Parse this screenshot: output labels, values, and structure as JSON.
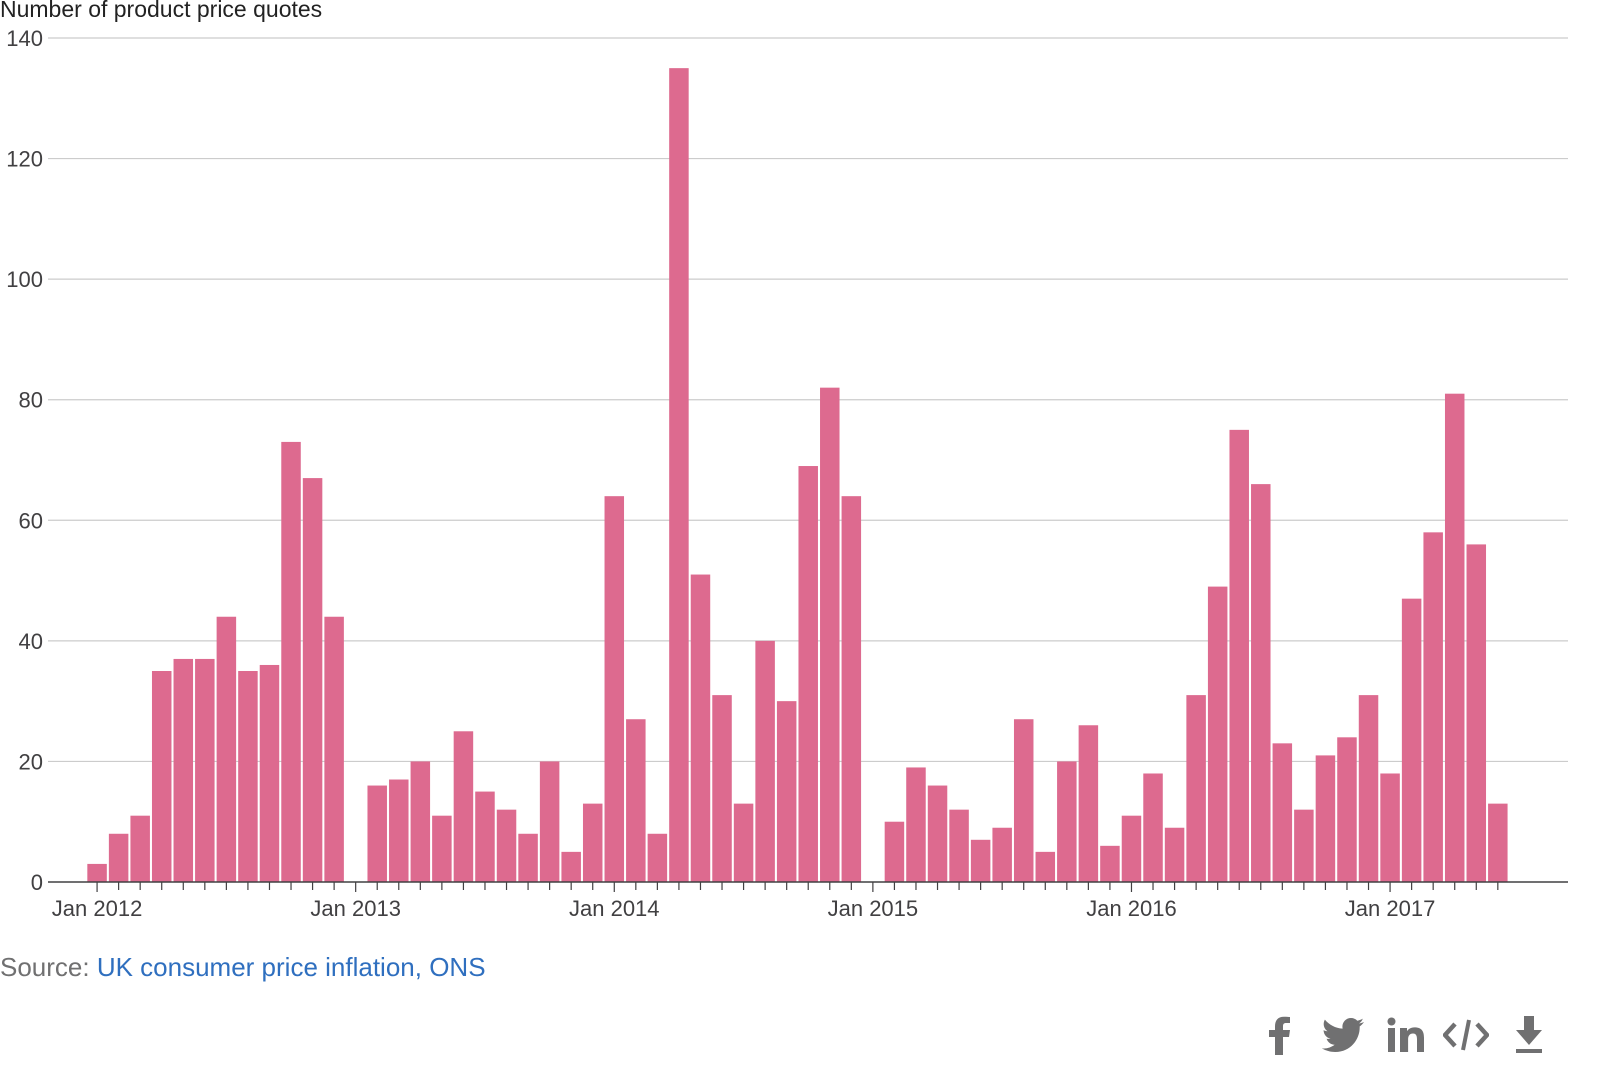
{
  "chart_data": {
    "type": "bar",
    "ylabel": "Number of product price quotes",
    "xlabel": "",
    "ylim": [
      0,
      140
    ],
    "yticks": [
      0,
      20,
      40,
      60,
      80,
      100,
      120,
      140
    ],
    "xtick_labels": [
      "Jan 2012",
      "Jan 2013",
      "Jan 2014",
      "Jan 2015",
      "Jan 2016",
      "Jan 2017"
    ],
    "grid": true,
    "bar_color": "#dd6a8f",
    "categories": [
      "Jan 2012",
      "Feb 2012",
      "Mar 2012",
      "Apr 2012",
      "May 2012",
      "Jun 2012",
      "Jul 2012",
      "Aug 2012",
      "Sep 2012",
      "Oct 2012",
      "Nov 2012",
      "Dec 2012",
      "Jan 2013",
      "Feb 2013",
      "Mar 2013",
      "Apr 2013",
      "May 2013",
      "Jun 2013",
      "Jul 2013",
      "Aug 2013",
      "Sep 2013",
      "Oct 2013",
      "Nov 2013",
      "Dec 2013",
      "Jan 2014",
      "Feb 2014",
      "Mar 2014",
      "Apr 2014",
      "May 2014",
      "Jun 2014",
      "Jul 2014",
      "Aug 2014",
      "Sep 2014",
      "Oct 2014",
      "Nov 2014",
      "Dec 2014",
      "Jan 2015",
      "Feb 2015",
      "Mar 2015",
      "Apr 2015",
      "May 2015",
      "Jun 2015",
      "Jul 2015",
      "Aug 2015",
      "Sep 2015",
      "Oct 2015",
      "Nov 2015",
      "Dec 2015",
      "Jan 2016",
      "Feb 2016",
      "Mar 2016",
      "Apr 2016",
      "May 2016",
      "Jun 2016",
      "Jul 2016",
      "Aug 2016",
      "Sep 2016",
      "Oct 2016",
      "Nov 2016",
      "Dec 2016",
      "Jan 2017",
      "Feb 2017",
      "Mar 2017",
      "Apr 2017",
      "May 2017",
      "Jun 2017"
    ],
    "values": [
      3,
      8,
      11,
      35,
      37,
      37,
      44,
      35,
      36,
      73,
      67,
      44,
      null,
      16,
      17,
      20,
      11,
      25,
      15,
      12,
      8,
      20,
      5,
      13,
      64,
      27,
      8,
      135,
      51,
      31,
      13,
      40,
      30,
      69,
      82,
      64,
      null,
      10,
      19,
      16,
      12,
      7,
      9,
      27,
      5,
      20,
      26,
      6,
      11,
      18,
      9,
      31,
      49,
      75,
      66,
      23,
      12,
      21,
      24,
      31,
      18,
      47,
      58,
      81,
      56,
      13
    ]
  },
  "source": {
    "label": "Source: ",
    "link_text": "UK consumer price inflation, ONS"
  },
  "share_icons": [
    "facebook-icon",
    "twitter-icon",
    "linkedin-icon",
    "embed-code-icon",
    "download-icon"
  ],
  "colors": {
    "share_icon": "#707071",
    "link": "#2f6fbf",
    "grid": "#cccccc"
  }
}
